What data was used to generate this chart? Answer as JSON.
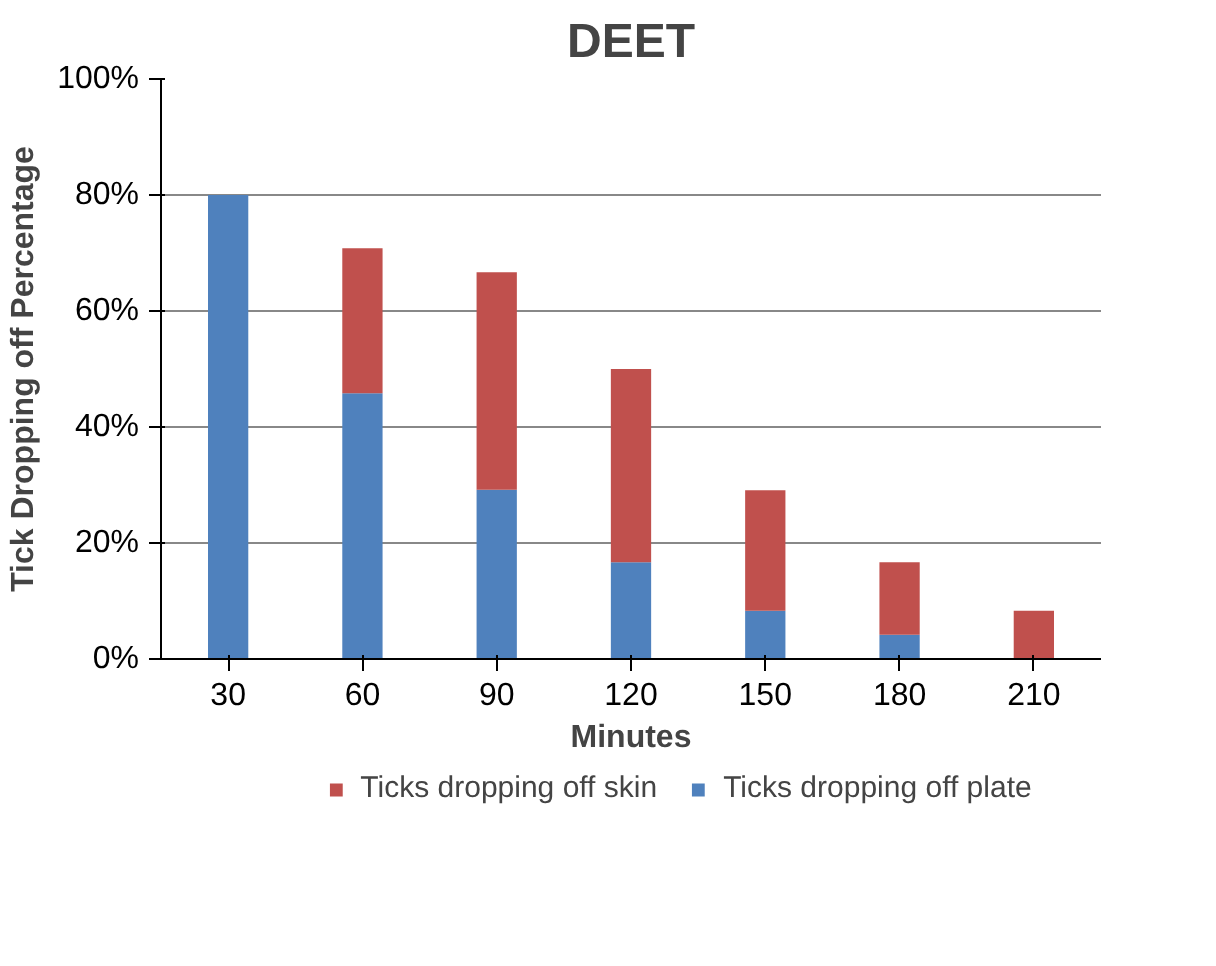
{
  "chart_data": {
    "type": "bar",
    "title": "DEET",
    "xlabel": "Minutes",
    "ylabel": "Tick Dropping off Percentage",
    "categories": [
      "30",
      "60",
      "90",
      "120",
      "150",
      "180",
      "210"
    ],
    "stacked": true,
    "series": [
      {
        "name": "Ticks dropping off plate",
        "color": "#4f81bd",
        "values": [
          80,
          45.8,
          29.2,
          16.7,
          8.3,
          4.2,
          0
        ]
      },
      {
        "name": "Ticks dropping off skin",
        "color": "#c0504d",
        "values": [
          0,
          25,
          37.5,
          33.3,
          20.8,
          12.5,
          8.3
        ]
      }
    ],
    "ylim": [
      0,
      100
    ],
    "yticks": [
      {
        "value": 0,
        "label": "0%"
      },
      {
        "value": 20,
        "label": "20%"
      },
      {
        "value": 40,
        "label": "40%"
      },
      {
        "value": 60,
        "label": "60%"
      },
      {
        "value": 80,
        "label": "80%"
      },
      {
        "value": 100,
        "label": "100%"
      }
    ],
    "grid": "y",
    "legend": "bottom"
  }
}
